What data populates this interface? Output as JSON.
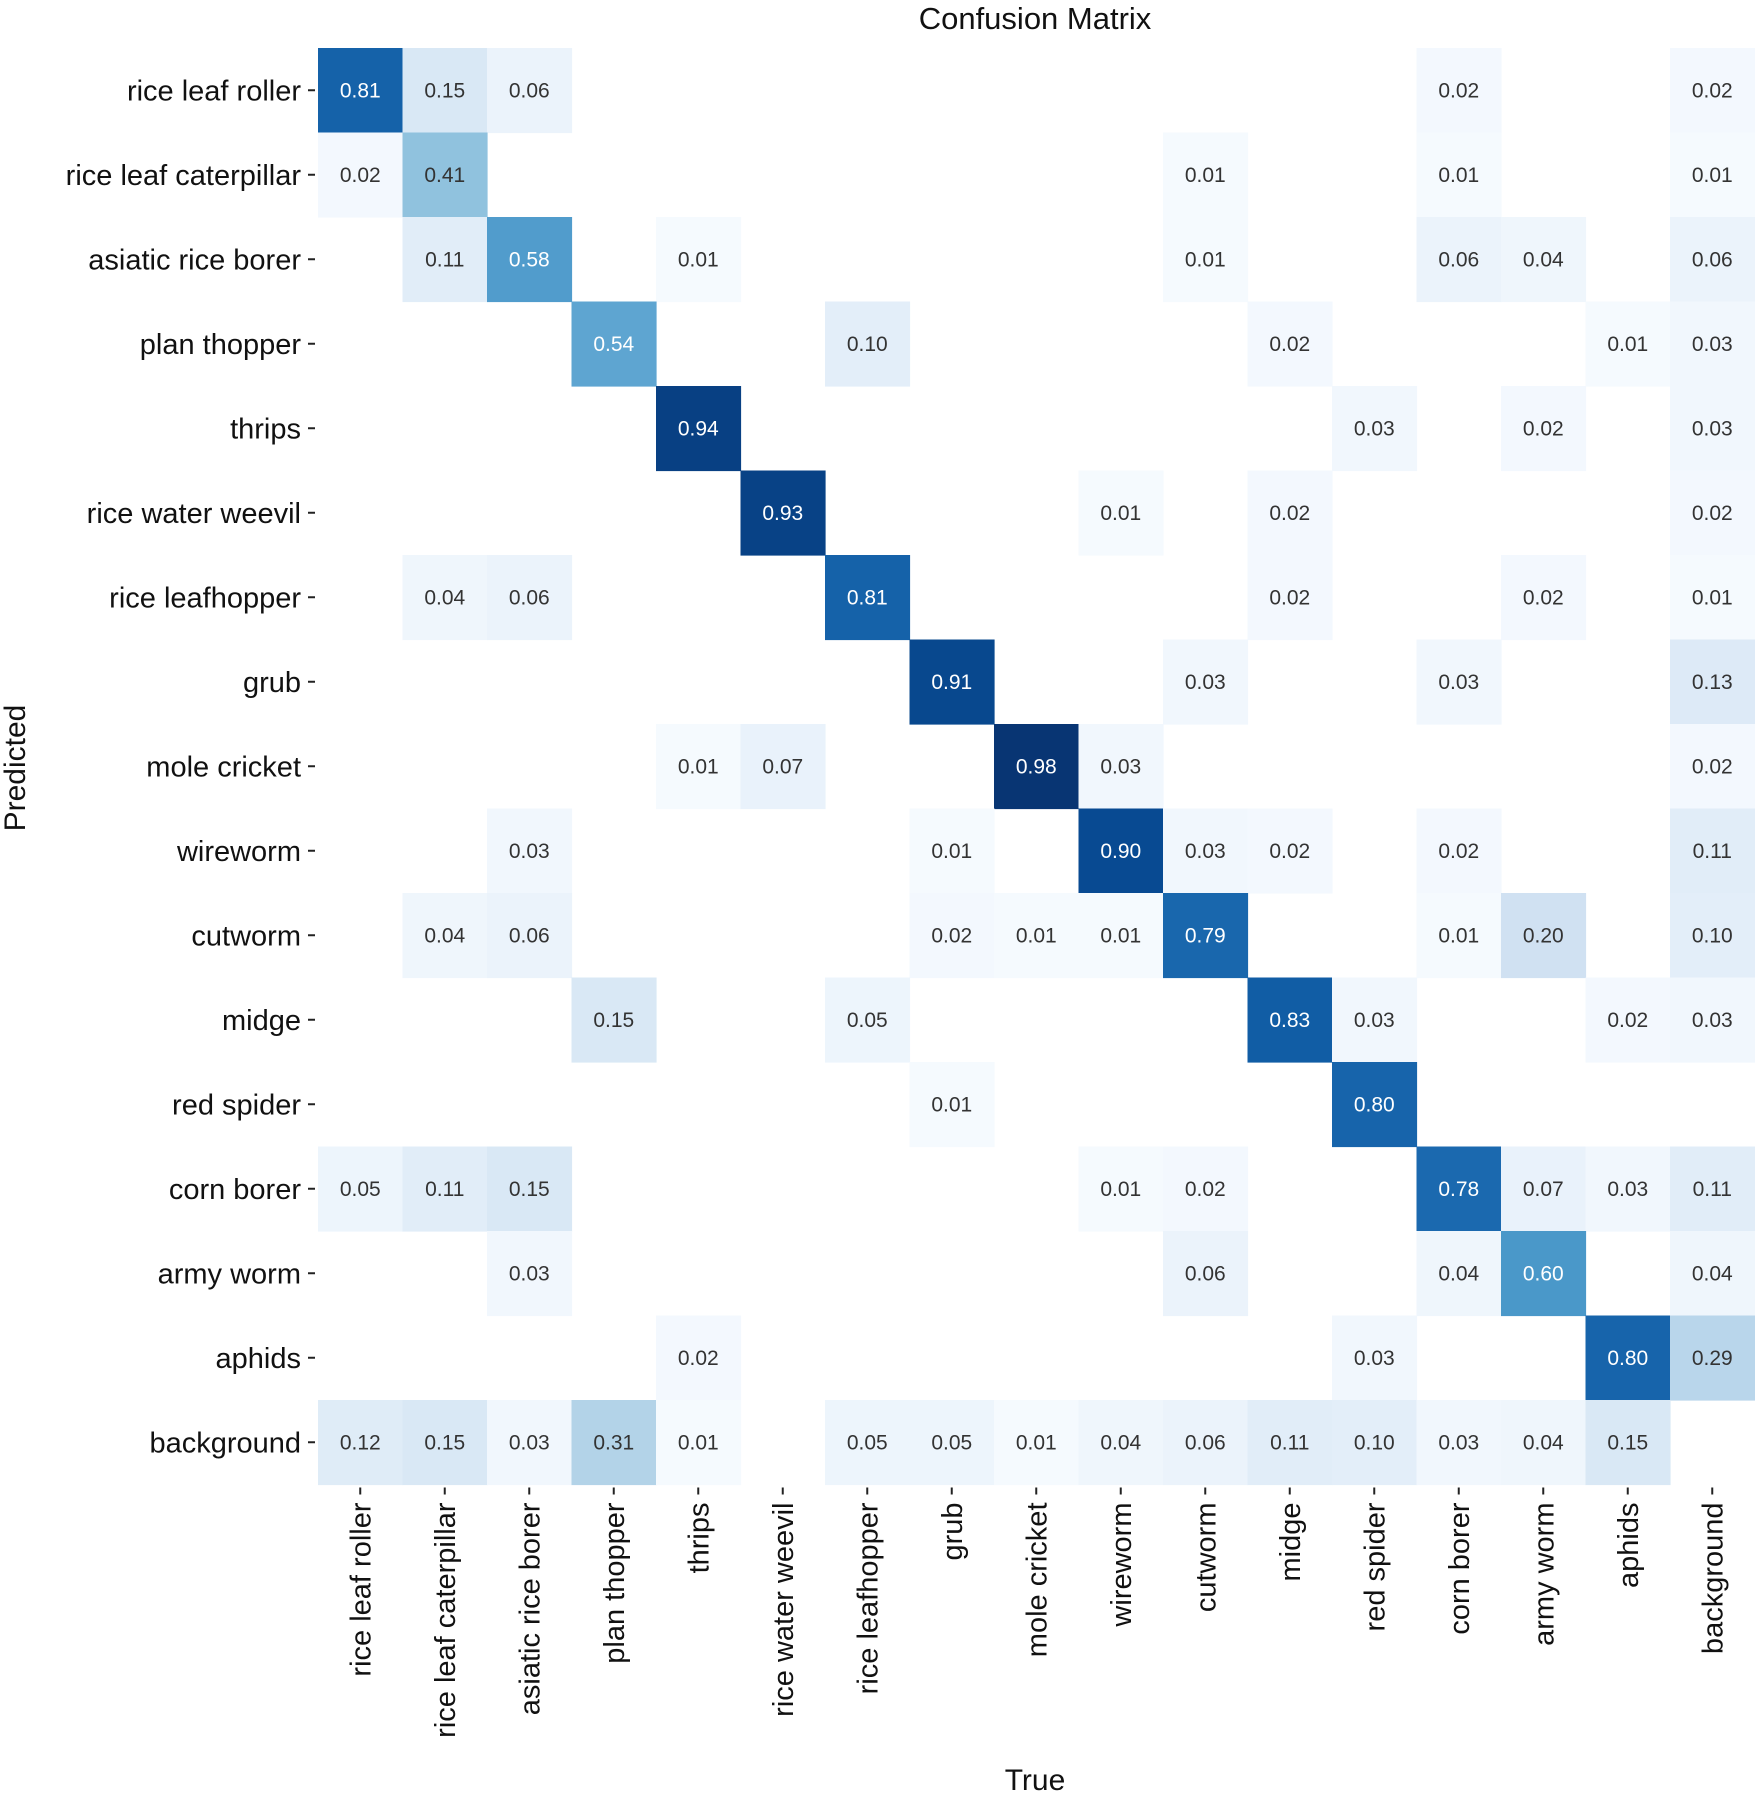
{
  "chart_data": {
    "type": "heatmap",
    "title": "Confusion Matrix",
    "xlabel": "True",
    "ylabel": "Predicted",
    "colormap": "Blues",
    "color_low": "#f7fbff",
    "color_high": "#08306b",
    "value_range": [
      0,
      1
    ],
    "labels": [
      "rice leaf roller",
      "rice leaf caterpillar",
      "asiatic rice borer",
      "plan thopper",
      "thrips",
      "rice water weevil",
      "rice leafhopper",
      "grub",
      "mole cricket",
      "wireworm",
      "cutworm",
      "midge",
      "red spider",
      "corn borer",
      "army worm",
      "aphids",
      "background"
    ],
    "matrix": [
      [
        "0.81",
        "0.15",
        "0.06",
        "",
        "",
        "",
        "",
        "",
        "",
        "",
        "",
        "",
        "",
        "0.02",
        "",
        "",
        "0.02"
      ],
      [
        "0.02",
        "0.41",
        "",
        "",
        "",
        "",
        "",
        "",
        "",
        "",
        "0.01",
        "",
        "",
        "0.01",
        "",
        "",
        "0.01"
      ],
      [
        "",
        "0.11",
        "0.58",
        "",
        "0.01",
        "",
        "",
        "",
        "",
        "",
        "0.01",
        "",
        "",
        "0.06",
        "0.04",
        "",
        "0.06"
      ],
      [
        "",
        "",
        "",
        "0.54",
        "",
        "",
        "0.10",
        "",
        "",
        "",
        "",
        "0.02",
        "",
        "",
        "",
        "0.01",
        "0.03"
      ],
      [
        "",
        "",
        "",
        "",
        "0.94",
        "",
        "",
        "",
        "",
        "",
        "",
        "",
        "0.03",
        "",
        "0.02",
        "",
        "0.03"
      ],
      [
        "",
        "",
        "",
        "",
        "",
        "0.93",
        "",
        "",
        "",
        "0.01",
        "",
        "0.02",
        "",
        "",
        "",
        "",
        "0.02"
      ],
      [
        "",
        "0.04",
        "0.06",
        "",
        "",
        "",
        "0.81",
        "",
        "",
        "",
        "",
        "0.02",
        "",
        "",
        "0.02",
        "",
        "0.01"
      ],
      [
        "",
        "",
        "",
        "",
        "",
        "",
        "",
        "0.91",
        "",
        "",
        "0.03",
        "",
        "",
        "0.03",
        "",
        "",
        "0.13"
      ],
      [
        "",
        "",
        "",
        "",
        "0.01",
        "0.07",
        "",
        "",
        "0.98",
        "0.03",
        "",
        "",
        "",
        "",
        "",
        "",
        "0.02"
      ],
      [
        "",
        "",
        "0.03",
        "",
        "",
        "",
        "",
        "0.01",
        "",
        "0.90",
        "0.03",
        "0.02",
        "",
        "0.02",
        "",
        "",
        "0.11"
      ],
      [
        "",
        "0.04",
        "0.06",
        "",
        "",
        "",
        "",
        "0.02",
        "0.01",
        "0.01",
        "0.79",
        "",
        "",
        "0.01",
        "0.20",
        "",
        "0.10"
      ],
      [
        "",
        "",
        "",
        "0.15",
        "",
        "",
        "0.05",
        "",
        "",
        "",
        "",
        "0.83",
        "0.03",
        "",
        "",
        "0.02",
        "0.03"
      ],
      [
        "",
        "",
        "",
        "",
        "",
        "",
        "",
        "0.01",
        "",
        "",
        "",
        "",
        "0.80",
        "",
        "",
        "",
        ""
      ],
      [
        "0.05",
        "0.11",
        "0.15",
        "",
        "",
        "",
        "",
        "",
        "",
        "0.01",
        "0.02",
        "",
        "",
        "0.78",
        "0.07",
        "0.03",
        "0.11"
      ],
      [
        "",
        "",
        "0.03",
        "",
        "",
        "",
        "",
        "",
        "",
        "",
        "0.06",
        "",
        "",
        "0.04",
        "0.60",
        "",
        "0.04"
      ],
      [
        "",
        "",
        "",
        "",
        "0.02",
        "",
        "",
        "",
        "",
        "",
        "",
        "",
        "0.03",
        "",
        "",
        "0.80",
        "0.29"
      ],
      [
        "0.12",
        "0.15",
        "0.03",
        "0.31",
        "0.01",
        "",
        "0.05",
        "0.05",
        "0.01",
        "0.04",
        "0.06",
        "0.11",
        "0.10",
        "0.03",
        "0.04",
        "0.15",
        ""
      ]
    ]
  }
}
